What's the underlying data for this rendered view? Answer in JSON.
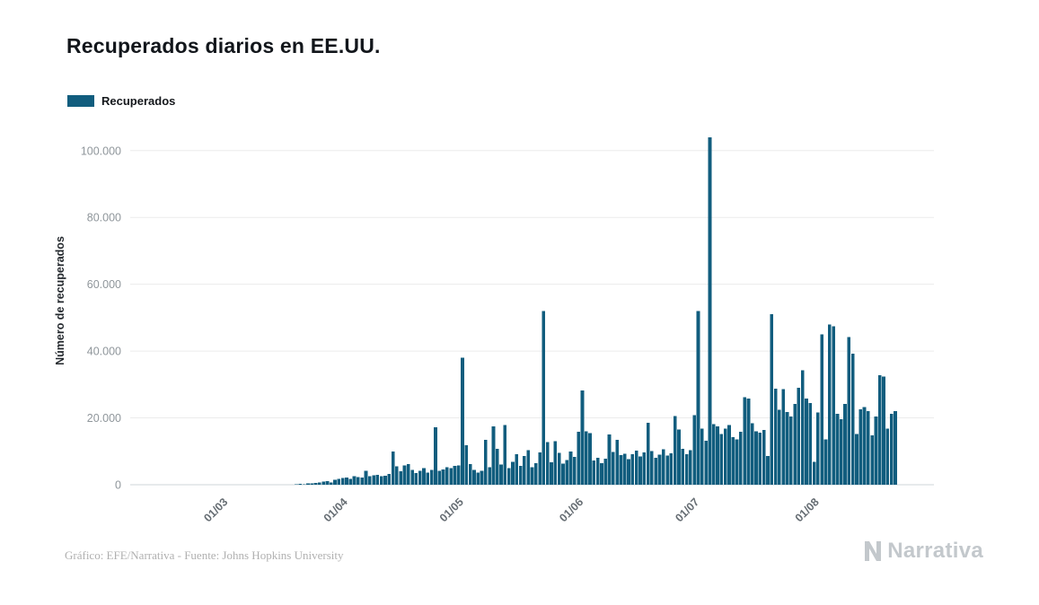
{
  "header": {
    "title": "Recuperados diarios en EE.UU."
  },
  "legend": {
    "label": "Recuperados",
    "color": "#115d7e"
  },
  "footer": {
    "credit": "Gráfico: EFE/Narrativa - Fuente: Johns Hopkins University",
    "brand": "Narrativa"
  },
  "chart_data": {
    "type": "bar",
    "title": "Recuperados diarios en EE.UU.",
    "xlabel": "",
    "ylabel": "Número de recuperados",
    "series_name": "Recuperados",
    "bar_color": "#115d7e",
    "grid": true,
    "legend_position": "top-left",
    "frequency": "daily",
    "start_date": "2020-02-10",
    "x_domain": [
      "2020-02-06",
      "2020-09-01"
    ],
    "ylim": [
      0,
      108000
    ],
    "yticks": [
      {
        "value": 0,
        "label": "0"
      },
      {
        "value": 20000,
        "label": "20.000"
      },
      {
        "value": 40000,
        "label": "40.000"
      },
      {
        "value": 60000,
        "label": "60.000"
      },
      {
        "value": 80000,
        "label": "80.000"
      },
      {
        "value": 100000,
        "label": "100.000"
      }
    ],
    "xticks": [
      {
        "date": "2020-03-01",
        "label": "01/03"
      },
      {
        "date": "2020-04-01",
        "label": "01/04"
      },
      {
        "date": "2020-05-01",
        "label": "01/05"
      },
      {
        "date": "2020-06-01",
        "label": "01/06"
      },
      {
        "date": "2020-07-01",
        "label": "01/07"
      },
      {
        "date": "2020-08-01",
        "label": "01/08"
      }
    ],
    "values": [
      0,
      0,
      0,
      0,
      0,
      0,
      0,
      0,
      0,
      0,
      0,
      0,
      0,
      0,
      0,
      0,
      0,
      0,
      0,
      0,
      0,
      0,
      0,
      0,
      0,
      0,
      0,
      0,
      0,
      0,
      0,
      0,
      0,
      0,
      0,
      0,
      0,
      0,
      0,
      150,
      250,
      100,
      350,
      420,
      500,
      620,
      900,
      1100,
      700,
      1500,
      1800,
      2000,
      2200,
      1800,
      2500,
      2300,
      2100,
      4200,
      2600,
      2800,
      3000,
      2500,
      2700,
      3200,
      10000,
      5500,
      4000,
      5800,
      6200,
      4500,
      3500,
      4100,
      5000,
      3600,
      4400,
      17200,
      4200,
      4600,
      5200,
      5000,
      5600,
      5800,
      38000,
      11800,
      6200,
      4500,
      3600,
      4200,
      13500,
      5300,
      17500,
      10800,
      6000,
      17800,
      5000,
      6800,
      9200,
      5600,
      8600,
      10400,
      5200,
      6400,
      9700,
      52000,
      12800,
      6700,
      13000,
      9600,
      6300,
      7400,
      9900,
      8300,
      15800,
      28200,
      16000,
      15500,
      7200,
      8000,
      6500,
      7800,
      15000,
      9800,
      13500,
      8800,
      9300,
      7600,
      9100,
      10200,
      8400,
      9700,
      18600,
      10100,
      8100,
      9000,
      10600,
      8700,
      9400,
      20500,
      16500,
      10800,
      9200,
      10400,
      20800,
      52000,
      16800,
      13200,
      104000,
      18200,
      17500,
      15200,
      16800,
      17800,
      14200,
      13600,
      15800,
      26200,
      25800,
      18400,
      16000,
      15600,
      16400,
      8600,
      51000,
      28800,
      22400,
      28600,
      21800,
      20400,
      24200,
      29000,
      34200,
      25800,
      24400,
      6800,
      21600,
      45000,
      13600,
      48000,
      47400,
      21200,
      19600,
      24200,
      44200,
      39200,
      15200,
      22600,
      23200,
      22000,
      14800,
      20400,
      32800,
      32400,
      16800,
      21200,
      22000
    ]
  }
}
